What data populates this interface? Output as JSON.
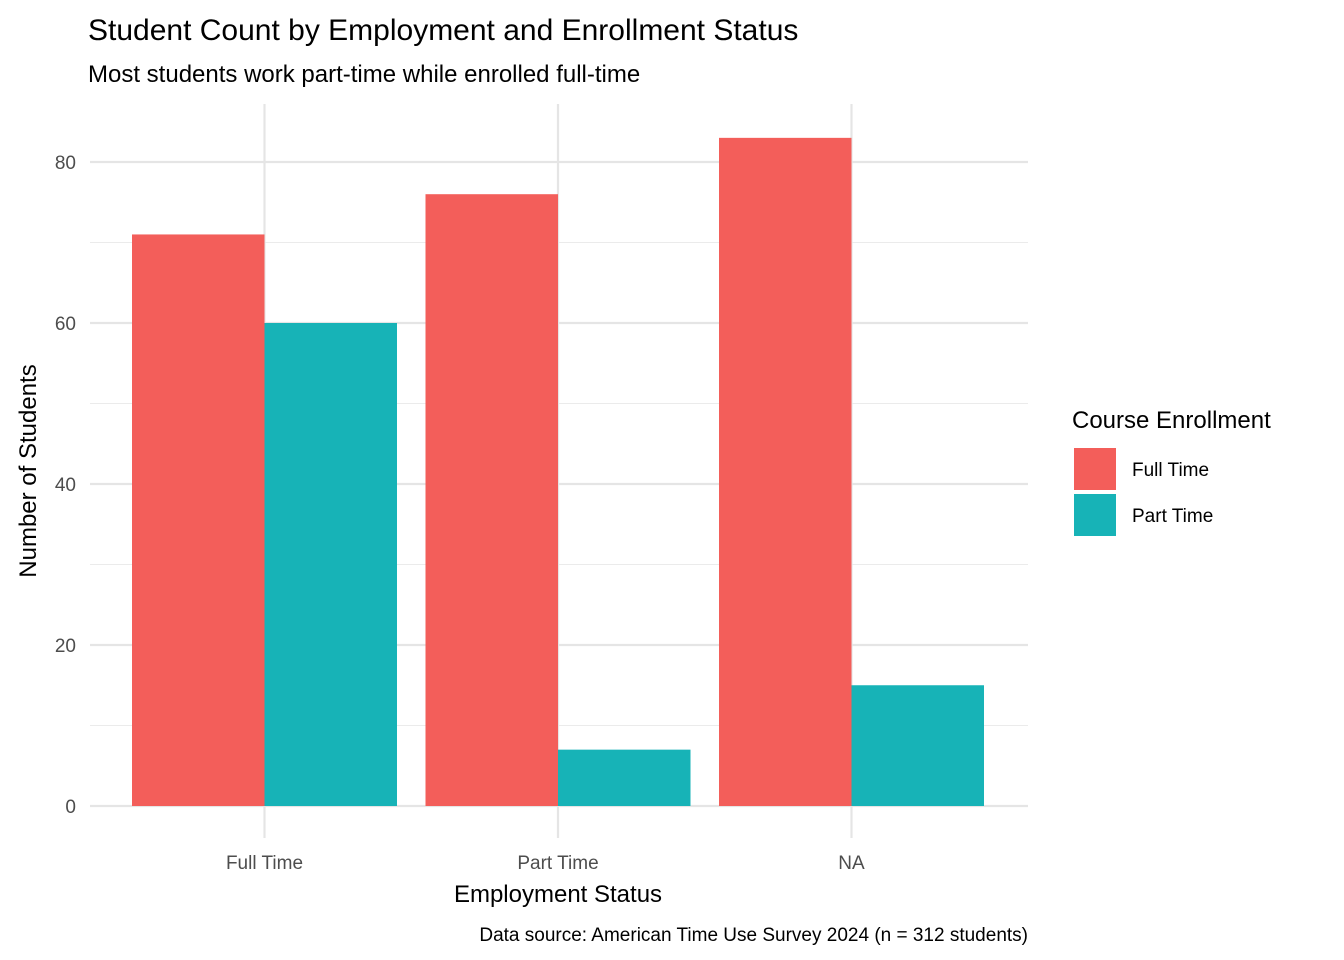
{
  "chart_data": {
    "type": "bar",
    "title": "Student Count by Employment and Enrollment Status",
    "subtitle": "Most students work part-time while enrolled full-time",
    "xlabel": "Employment Status",
    "ylabel": "Number of Students",
    "caption": "Data source: American Time Use Survey 2024 (n = 312 students)",
    "categories": [
      "Full Time",
      "Part Time",
      "NA"
    ],
    "series": [
      {
        "name": "Full Time",
        "color": "#F35E5A",
        "values": [
          71,
          76,
          83
        ]
      },
      {
        "name": "Part Time",
        "color": "#17B3B7",
        "values": [
          60,
          7,
          15
        ]
      }
    ],
    "yticks": [
      0,
      20,
      40,
      60,
      80
    ],
    "ylim": [
      -4,
      87
    ],
    "grid": true,
    "legend": {
      "title": "Course Enrollment",
      "position": "right"
    }
  }
}
